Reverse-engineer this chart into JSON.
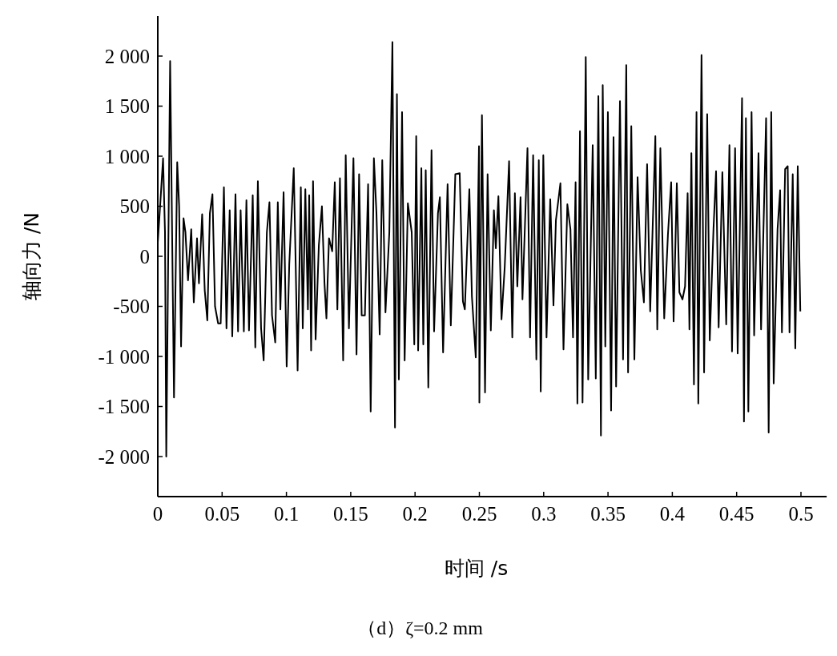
{
  "chart_data": {
    "type": "line",
    "xlabel": "时间 /s",
    "ylabel": "轴向力 /N",
    "annotations": [
      "（d）ζ=0.2 mm"
    ],
    "xlim": [
      0,
      0.52
    ],
    "xticks": [
      0,
      0.05,
      0.1,
      0.15,
      0.2,
      0.25,
      0.3,
      0.35,
      0.4,
      0.45,
      0.5
    ],
    "ylim": [
      -2400,
      2400
    ],
    "yticks": [
      {
        "value": -2000,
        "label": "-2 000"
      },
      {
        "value": -1500,
        "label": "-1 500"
      },
      {
        "value": -1000,
        "label": "-1 000"
      },
      -500,
      0,
      500,
      {
        "value": 1000,
        "label": "1 000"
      },
      {
        "value": 1500,
        "label": "1 500"
      },
      {
        "value": 2000,
        "label": "2 000"
      }
    ],
    "grid": false,
    "marker": "none",
    "line_style": "solid",
    "series": [
      {
        "color": "#000000",
        "x": [
          0,
          0.0021,
          0.0041,
          0.0056,
          0.0066,
          0.0096,
          0.0126,
          0.0151,
          0.0166,
          0.0181,
          0.02,
          0.0215,
          0.0235,
          0.026,
          0.028,
          0.0305,
          0.032,
          0.0345,
          0.0365,
          0.0385,
          0.0405,
          0.0425,
          0.0445,
          0.0469,
          0.0489,
          0.0514,
          0.0534,
          0.0559,
          0.0579,
          0.0604,
          0.0624,
          0.0644,
          0.0669,
          0.0689,
          0.0709,
          0.0738,
          0.0758,
          0.0778,
          0.0803,
          0.0823,
          0.0848,
          0.0868,
          0.0888,
          0.0913,
          0.0933,
          0.0953,
          0.0978,
          0.1002,
          0.1022,
          0.1057,
          0.1072,
          0.1087,
          0.1112,
          0.1127,
          0.1147,
          0.1167,
          0.1177,
          0.1192,
          0.1207,
          0.1227,
          0.1252,
          0.1276,
          0.1296,
          0.1311,
          0.1331,
          0.1356,
          0.1376,
          0.1396,
          0.1416,
          0.1441,
          0.1461,
          0.1486,
          0.1521,
          0.1545,
          0.1565,
          0.1585,
          0.161,
          0.1635,
          0.1655,
          0.168,
          0.17,
          0.1725,
          0.1745,
          0.177,
          0.18,
          0.1824,
          0.1844,
          0.1859,
          0.1874,
          0.1899,
          0.1919,
          0.1944,
          0.1974,
          0.1994,
          0.2009,
          0.2024,
          0.2049,
          0.2064,
          0.2083,
          0.2103,
          0.2128,
          0.2148,
          0.2178,
          0.2193,
          0.2218,
          0.2253,
          0.2278,
          0.2313,
          0.2347,
          0.2372,
          0.2387,
          0.2422,
          0.2442,
          0.2472,
          0.2497,
          0.25,
          0.252,
          0.2544,
          0.2564,
          0.2589,
          0.2613,
          0.2628,
          0.2648,
          0.2672,
          0.2697,
          0.2731,
          0.2756,
          0.2776,
          0.2795,
          0.282,
          0.2835,
          0.2854,
          0.2874,
          0.2894,
          0.2918,
          0.2943,
          0.2962,
          0.2977,
          0.2997,
          0.3022,
          0.3051,
          0.3076,
          0.3095,
          0.313,
          0.3154,
          0.3184,
          0.3208,
          0.3228,
          0.3248,
          0.3262,
          0.3282,
          0.3302,
          0.3327,
          0.3346,
          0.3381,
          0.3405,
          0.3425,
          0.3445,
          0.3459,
          0.3479,
          0.3499,
          0.3524,
          0.3543,
          0.3563,
          0.3593,
          0.3617,
          0.3642,
          0.3656,
          0.3681,
          0.3705,
          0.373,
          0.3755,
          0.3779,
          0.3804,
          0.3828,
          0.3868,
          0.3883,
          0.3907,
          0.3937,
          0.3966,
          0.3991,
          0.401,
          0.4035,
          0.4055,
          0.4079,
          0.4099,
          0.4119,
          0.4133,
          0.4148,
          0.4168,
          0.4188,
          0.4202,
          0.4227,
          0.4247,
          0.4271,
          0.4291,
          0.432,
          0.434,
          0.436,
          0.4389,
          0.4419,
          0.4444,
          0.4464,
          0.4488,
          0.4508,
          0.4542,
          0.4557,
          0.4572,
          0.4591,
          0.4616,
          0.4636,
          0.467,
          0.469,
          0.4729,
          0.4749,
          0.4769,
          0.4788,
          0.4818,
          0.4838,
          0.4852,
          0.4877,
          0.4897,
          0.4911,
          0.4936,
          0.4956,
          0.4975,
          0.4995
        ],
        "values": [
          140,
          560,
          980,
          240,
          -2000,
          1950,
          -1410,
          940,
          500,
          -900,
          380,
          240,
          -240,
          270,
          -460,
          180,
          -270,
          420,
          -340,
          -640,
          430,
          620,
          -500,
          -670,
          -670,
          690,
          -720,
          460,
          -800,
          620,
          -750,
          460,
          -750,
          560,
          -740,
          610,
          -910,
          750,
          -720,
          -1040,
          240,
          540,
          -590,
          -860,
          540,
          -530,
          640,
          -1100,
          -80,
          880,
          -80,
          -1140,
          690,
          -720,
          670,
          -530,
          610,
          -940,
          750,
          -830,
          110,
          500,
          -270,
          -620,
          180,
          50,
          740,
          -530,
          780,
          -1040,
          1010,
          -720,
          980,
          -980,
          820,
          -590,
          -590,
          720,
          -1550,
          980,
          430,
          -780,
          960,
          -560,
          240,
          2140,
          -1710,
          1620,
          -1230,
          1440,
          -1040,
          530,
          240,
          -880,
          1200,
          -940,
          880,
          -880,
          860,
          -1310,
          1060,
          -750,
          430,
          590,
          -960,
          720,
          -690,
          820,
          830,
          -450,
          -530,
          670,
          -400,
          -1010,
          1100,
          -1460,
          1410,
          -1360,
          820,
          -740,
          460,
          80,
          600,
          -630,
          -110,
          950,
          -810,
          630,
          -300,
          590,
          -430,
          300,
          1080,
          -810,
          1010,
          -1030,
          960,
          -1350,
          1010,
          -810,
          570,
          -490,
          360,
          730,
          -930,
          520,
          270,
          -810,
          740,
          -1470,
          1250,
          -1460,
          1990,
          -1230,
          1110,
          -1220,
          1600,
          -1790,
          1710,
          -900,
          1440,
          -1540,
          1190,
          -1300,
          1550,
          -1030,
          1910,
          -1160,
          1300,
          -1030,
          790,
          -140,
          -460,
          920,
          -550,
          1200,
          -730,
          1080,
          -620,
          220,
          740,
          -650,
          730,
          -360,
          -430,
          -300,
          630,
          -730,
          1030,
          -1280,
          1440,
          -1470,
          2010,
          -1160,
          1420,
          -840,
          270,
          850,
          -710,
          840,
          -680,
          1110,
          -950,
          1080,
          -970,
          1580,
          -1650,
          1380,
          -1550,
          1440,
          -790,
          1030,
          -730,
          1380,
          -1760,
          1440,
          -1270,
          270,
          660,
          -760,
          870,
          900,
          -760,
          820,
          -920,
          900,
          -550
        ]
      }
    ]
  }
}
